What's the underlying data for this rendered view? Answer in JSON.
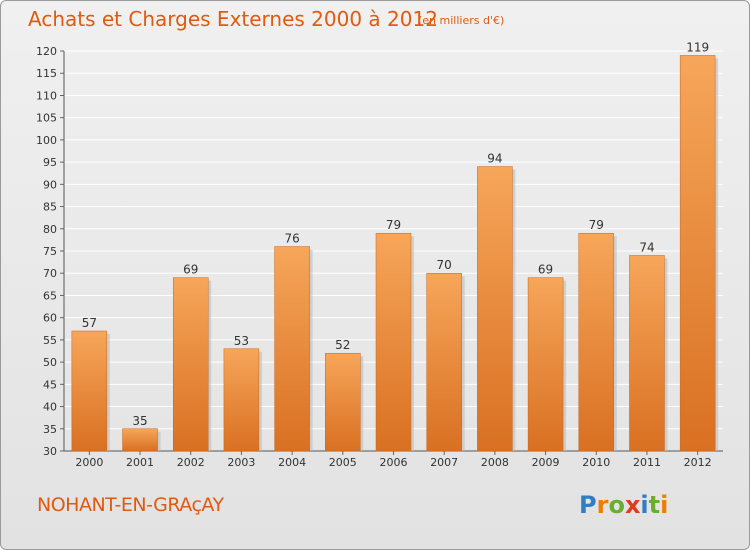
{
  "title": "Achats et Charges Externes 2000 à 2012",
  "subtitle": "(en milliers d'€)",
  "commune": "NOHANT-EN-GRAçAY",
  "logo": {
    "text": "Proxiti",
    "letters": [
      {
        "ch": "P",
        "color": "#2e7fc4"
      },
      {
        "ch": "r",
        "color": "#ef7d00"
      },
      {
        "ch": "o",
        "color": "#6aae2f"
      },
      {
        "ch": "x",
        "color": "#e03c1c"
      },
      {
        "ch": "i",
        "color": "#2e7fc4"
      },
      {
        "ch": "t",
        "color": "#6aae2f"
      },
      {
        "ch": "i",
        "color": "#ef7d00"
      }
    ]
  },
  "colors": {
    "accent": "#e05a10",
    "bar_light": "#f6a65a",
    "bar_dark": "#d97022",
    "grid": "#ffffff",
    "axis_text": "#333333"
  },
  "chart_data": {
    "type": "bar",
    "title": "Achats et Charges Externes 2000 à 2012",
    "subtitle": "(en milliers d'€)",
    "categories": [
      "2000",
      "2001",
      "2002",
      "2003",
      "2004",
      "2005",
      "2006",
      "2007",
      "2008",
      "2009",
      "2010",
      "2011",
      "2012"
    ],
    "values": [
      57,
      35,
      69,
      53,
      76,
      52,
      79,
      70,
      94,
      69,
      79,
      74,
      119
    ],
    "ylim": [
      30,
      120
    ],
    "yticks": [
      30,
      35,
      40,
      45,
      50,
      55,
      60,
      65,
      70,
      75,
      80,
      85,
      90,
      95,
      100,
      105,
      110,
      115,
      120
    ],
    "grid": true,
    "xlabel": "",
    "ylabel": ""
  }
}
